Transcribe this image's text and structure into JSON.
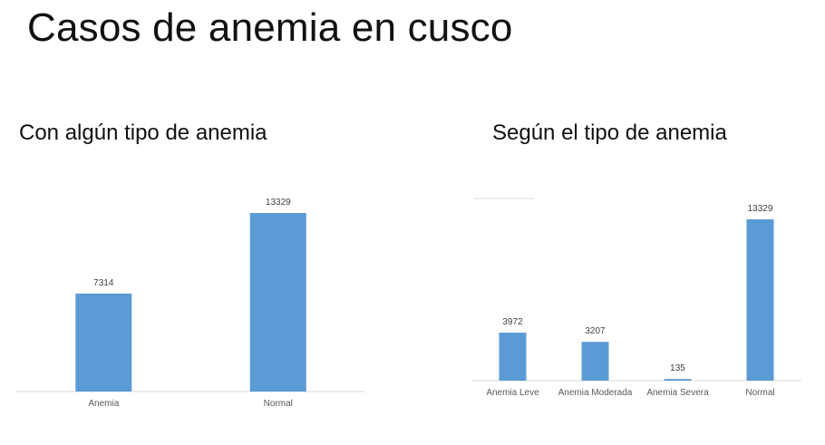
{
  "slide": {
    "title": "Casos de anemia en cusco"
  },
  "colors": {
    "bar": "#5b9bd5",
    "axis": "#d9d9d9"
  },
  "chart_data": [
    {
      "type": "bar",
      "title": "Con algún tipo de anemia",
      "categories": [
        "Anemia",
        "Normal"
      ],
      "values": [
        7314,
        13329
      ],
      "ylim": [
        0,
        14000
      ],
      "grid": false,
      "data_labels": true
    },
    {
      "type": "bar",
      "title": "Según el tipo de anemia",
      "categories": [
        "Anemia Leve",
        "Anemia Moderada",
        "Anemia Severa",
        "Normal"
      ],
      "values": [
        3972,
        3207,
        135,
        13329
      ],
      "ylim": [
        0,
        14000
      ],
      "grid": false,
      "data_labels": true
    }
  ]
}
